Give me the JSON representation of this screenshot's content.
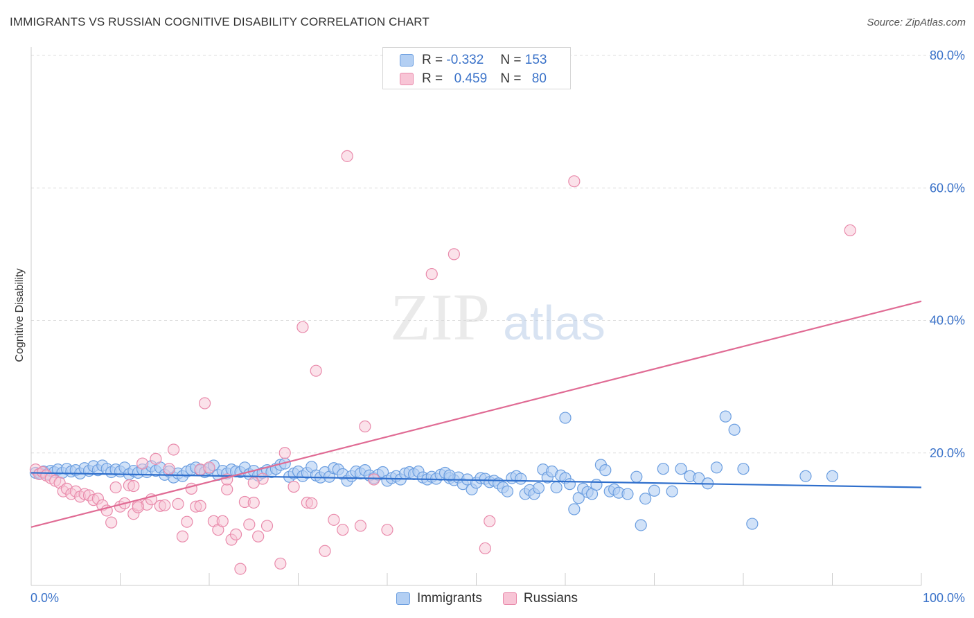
{
  "header": {
    "title": "IMMIGRANTS VS RUSSIAN COGNITIVE DISABILITY CORRELATION CHART",
    "source": "Source: ZipAtlas.com"
  },
  "legend_top": {
    "rows": [
      {
        "r_label": "R =",
        "r_value": "-0.332",
        "n_label": "N =",
        "n_value": "153"
      },
      {
        "r_label": "R =",
        "r_value": "0.459",
        "n_label": "N =",
        "n_value": "80"
      }
    ]
  },
  "legend_bottom": {
    "items": [
      "Immigrants",
      "Russians"
    ]
  },
  "watermark": {
    "zip": "ZIP",
    "atlas": "atlas"
  },
  "colors": {
    "immigrants_fill": "#b3cff3",
    "immigrants_stroke": "#6b9ee0",
    "immigrants_line": "#2f6fcc",
    "russians_fill": "#f8c5d6",
    "russians_stroke": "#e98aab",
    "russians_line": "#e06b94",
    "tick_label": "#3a72c9",
    "grid": "#dddddd"
  },
  "chart_data": {
    "type": "scatter",
    "title": "IMMIGRANTS VS RUSSIAN COGNITIVE DISABILITY CORRELATION CHART",
    "xlabel": "",
    "ylabel": "Cognitive Disability",
    "xlim": [
      0,
      100
    ],
    "ylim": [
      0,
      80
    ],
    "x_tick_labels": [
      "0.0%",
      "100.0%"
    ],
    "y_tick_labels": [
      "20.0%",
      "40.0%",
      "60.0%",
      "80.0%"
    ],
    "y_ticks": [
      20,
      40,
      60,
      80
    ],
    "grid": true,
    "legend": "bottom-center",
    "series": [
      {
        "name": "Immigrants",
        "stats": {
          "R": -0.332,
          "N": 153
        },
        "trend": {
          "x": [
            0,
            100
          ],
          "y": [
            17.0,
            14.8
          ]
        },
        "points": [
          [
            0.5,
            17.0
          ],
          [
            1.0,
            16.9
          ],
          [
            1.4,
            17.2
          ],
          [
            1.8,
            16.8
          ],
          [
            2.2,
            17.3
          ],
          [
            2.6,
            17.1
          ],
          [
            3.0,
            17.5
          ],
          [
            3.5,
            17.0
          ],
          [
            4.0,
            17.6
          ],
          [
            4.5,
            17.2
          ],
          [
            5.0,
            17.4
          ],
          [
            5.5,
            16.9
          ],
          [
            6.0,
            17.7
          ],
          [
            6.5,
            17.3
          ],
          [
            7.0,
            18.0
          ],
          [
            7.5,
            17.4
          ],
          [
            8.0,
            18.1
          ],
          [
            8.5,
            17.6
          ],
          [
            9.0,
            17.1
          ],
          [
            9.5,
            17.5
          ],
          [
            10.0,
            17.2
          ],
          [
            10.5,
            17.8
          ],
          [
            11.0,
            16.8
          ],
          [
            11.5,
            17.3
          ],
          [
            12.0,
            17.0
          ],
          [
            12.5,
            17.5
          ],
          [
            13.0,
            17.1
          ],
          [
            13.5,
            18.0
          ],
          [
            14.0,
            17.3
          ],
          [
            14.5,
            17.8
          ],
          [
            15.0,
            16.7
          ],
          [
            15.5,
            17.2
          ],
          [
            16.0,
            16.3
          ],
          [
            16.5,
            16.9
          ],
          [
            17.0,
            16.5
          ],
          [
            17.5,
            17.2
          ],
          [
            18.0,
            17.5
          ],
          [
            18.5,
            17.8
          ],
          [
            19.0,
            17.4
          ],
          [
            19.5,
            17.1
          ],
          [
            20.0,
            17.6
          ],
          [
            20.5,
            18.1
          ],
          [
            21.0,
            16.7
          ],
          [
            21.5,
            17.3
          ],
          [
            22.0,
            16.9
          ],
          [
            22.5,
            17.5
          ],
          [
            23.0,
            17.2
          ],
          [
            23.5,
            17.1
          ],
          [
            24.0,
            17.8
          ],
          [
            24.5,
            16.8
          ],
          [
            25.0,
            17.3
          ],
          [
            25.5,
            16.6
          ],
          [
            26.0,
            17.0
          ],
          [
            26.5,
            17.4
          ],
          [
            27.0,
            17.1
          ],
          [
            27.5,
            17.6
          ],
          [
            28.0,
            18.2
          ],
          [
            28.5,
            18.4
          ],
          [
            29.0,
            16.4
          ],
          [
            29.5,
            16.9
          ],
          [
            30.0,
            17.2
          ],
          [
            30.5,
            16.5
          ],
          [
            31.0,
            17.0
          ],
          [
            31.5,
            17.9
          ],
          [
            32.0,
            16.6
          ],
          [
            32.5,
            16.3
          ],
          [
            33.0,
            17.1
          ],
          [
            33.5,
            16.4
          ],
          [
            34.0,
            17.7
          ],
          [
            34.5,
            17.5
          ],
          [
            35.0,
            16.8
          ],
          [
            35.5,
            15.8
          ],
          [
            36.0,
            16.5
          ],
          [
            36.5,
            17.2
          ],
          [
            37.0,
            16.9
          ],
          [
            37.5,
            17.4
          ],
          [
            38.0,
            16.6
          ],
          [
            38.5,
            16.2
          ],
          [
            39.0,
            16.7
          ],
          [
            39.5,
            17.1
          ],
          [
            40.0,
            15.8
          ],
          [
            40.5,
            16.2
          ],
          [
            41.0,
            16.5
          ],
          [
            41.5,
            16.0
          ],
          [
            42.0,
            16.9
          ],
          [
            42.5,
            17.1
          ],
          [
            43.0,
            16.8
          ],
          [
            43.5,
            17.2
          ],
          [
            44.0,
            16.3
          ],
          [
            44.5,
            16.0
          ],
          [
            45.0,
            16.4
          ],
          [
            45.5,
            16.1
          ],
          [
            46.0,
            16.7
          ],
          [
            46.5,
            17.0
          ],
          [
            47.0,
            16.2
          ],
          [
            47.5,
            15.9
          ],
          [
            48.0,
            16.3
          ],
          [
            48.5,
            15.3
          ],
          [
            49.0,
            16.0
          ],
          [
            49.5,
            14.5
          ],
          [
            50.0,
            15.5
          ],
          [
            50.5,
            16.2
          ],
          [
            51.0,
            16.1
          ],
          [
            51.5,
            15.6
          ],
          [
            52.0,
            15.8
          ],
          [
            52.5,
            15.4
          ],
          [
            53.0,
            14.8
          ],
          [
            53.5,
            14.2
          ],
          [
            54.0,
            16.2
          ],
          [
            54.5,
            16.5
          ],
          [
            55.0,
            16.1
          ],
          [
            55.5,
            13.8
          ],
          [
            56.0,
            14.4
          ],
          [
            56.5,
            13.8
          ],
          [
            57.0,
            14.7
          ],
          [
            57.5,
            17.5
          ],
          [
            58.0,
            16.3
          ],
          [
            58.5,
            17.2
          ],
          [
            59.0,
            14.8
          ],
          [
            59.5,
            16.6
          ],
          [
            60.0,
            16.2
          ],
          [
            60.5,
            15.3
          ],
          [
            61.0,
            11.5
          ],
          [
            61.5,
            13.2
          ],
          [
            62.0,
            14.6
          ],
          [
            62.5,
            14.1
          ],
          [
            63.0,
            13.8
          ],
          [
            63.5,
            15.2
          ],
          [
            64.0,
            18.2
          ],
          [
            64.5,
            17.4
          ],
          [
            65.0,
            14.2
          ],
          [
            65.5,
            14.5
          ],
          [
            66.0,
            14.0
          ],
          [
            67.0,
            13.8
          ],
          [
            68.0,
            16.4
          ],
          [
            68.5,
            9.1
          ],
          [
            69.0,
            13.1
          ],
          [
            70.0,
            14.3
          ],
          [
            71.0,
            17.6
          ],
          [
            72.0,
            14.2
          ],
          [
            73.0,
            17.6
          ],
          [
            74.0,
            16.5
          ],
          [
            75.0,
            16.2
          ],
          [
            76.0,
            15.4
          ],
          [
            77.0,
            17.8
          ],
          [
            78.0,
            25.5
          ],
          [
            79.0,
            23.5
          ],
          [
            80.0,
            17.6
          ],
          [
            81.0,
            9.3
          ],
          [
            87.0,
            16.5
          ],
          [
            90.0,
            16.5
          ],
          [
            60.0,
            25.3
          ],
          [
            47.0,
            16.6
          ]
        ]
      },
      {
        "name": "Russians",
        "stats": {
          "R": 0.459,
          "N": 80
        },
        "trend": {
          "x": [
            0,
            100
          ],
          "y": [
            8.8,
            42.9
          ]
        },
        "points": [
          [
            0.5,
            17.5
          ],
          [
            0.9,
            16.8
          ],
          [
            1.3,
            17.1
          ],
          [
            1.7,
            16.6
          ],
          [
            2.2,
            16.2
          ],
          [
            2.7,
            15.8
          ],
          [
            3.2,
            15.5
          ],
          [
            3.6,
            14.2
          ],
          [
            4.0,
            14.6
          ],
          [
            4.5,
            13.8
          ],
          [
            5.0,
            14.2
          ],
          [
            5.5,
            13.4
          ],
          [
            6.0,
            13.8
          ],
          [
            6.5,
            13.6
          ],
          [
            7.0,
            12.9
          ],
          [
            7.5,
            13.1
          ],
          [
            8.0,
            12.1
          ],
          [
            8.5,
            11.3
          ],
          [
            9.0,
            9.5
          ],
          [
            9.5,
            14.8
          ],
          [
            10.0,
            11.9
          ],
          [
            10.5,
            12.4
          ],
          [
            11.0,
            15.1
          ],
          [
            11.5,
            10.8
          ],
          [
            12.0,
            12.1
          ],
          [
            12.5,
            18.4
          ],
          [
            13.0,
            12.2
          ],
          [
            13.5,
            13.0
          ],
          [
            14.0,
            19.1
          ],
          [
            14.5,
            12.0
          ],
          [
            15.0,
            12.1
          ],
          [
            15.5,
            17.6
          ],
          [
            16.0,
            20.5
          ],
          [
            16.5,
            12.3
          ],
          [
            17.0,
            7.4
          ],
          [
            17.5,
            9.6
          ],
          [
            18.0,
            14.6
          ],
          [
            18.5,
            11.9
          ],
          [
            19.0,
            17.5
          ],
          [
            19.5,
            27.5
          ],
          [
            20.0,
            17.8
          ],
          [
            20.5,
            9.7
          ],
          [
            21.0,
            8.4
          ],
          [
            21.5,
            9.7
          ],
          [
            22.0,
            14.5
          ],
          [
            22.5,
            6.9
          ],
          [
            23.0,
            7.7
          ],
          [
            23.5,
            2.5
          ],
          [
            24.0,
            12.6
          ],
          [
            24.5,
            9.2
          ],
          [
            25.0,
            12.5
          ],
          [
            25.5,
            7.4
          ],
          [
            26.0,
            16.1
          ],
          [
            26.5,
            9.0
          ],
          [
            28.0,
            3.3
          ],
          [
            28.5,
            20.0
          ],
          [
            29.5,
            14.9
          ],
          [
            30.5,
            39.0
          ],
          [
            31.0,
            12.5
          ],
          [
            32.0,
            32.4
          ],
          [
            33.0,
            5.2
          ],
          [
            34.0,
            9.9
          ],
          [
            35.0,
            8.4
          ],
          [
            37.0,
            9.0
          ],
          [
            38.5,
            16.0
          ],
          [
            40.0,
            8.4
          ],
          [
            35.5,
            64.8
          ],
          [
            37.5,
            24.0
          ],
          [
            45.0,
            47.0
          ],
          [
            47.5,
            50.0
          ],
          [
            51.0,
            5.6
          ],
          [
            51.5,
            9.7
          ],
          [
            61.0,
            61.0
          ],
          [
            92.0,
            53.6
          ],
          [
            31.5,
            12.4
          ],
          [
            25.0,
            15.5
          ],
          [
            22.0,
            16.0
          ],
          [
            12.0,
            11.8
          ],
          [
            11.5,
            15.0
          ],
          [
            19.0,
            12.0
          ]
        ]
      }
    ]
  }
}
